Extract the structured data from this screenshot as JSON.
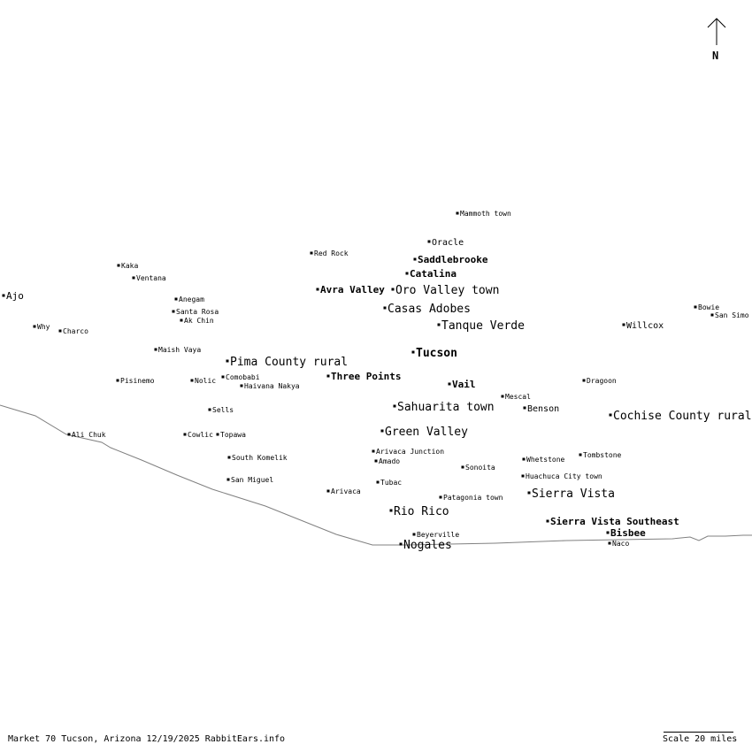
{
  "map": {
    "north_label": "N",
    "footer_text": "Market 70 Tucson, Arizona 12/19/2025 RabbitEars.info",
    "scale_text": "Scale 20 miles",
    "border_color": "#808080",
    "places": [
      {
        "name": "Mammoth town",
        "size": "xs",
        "bold": false
      },
      {
        "name": "Oracle",
        "size": "s",
        "bold": false
      },
      {
        "name": "Saddlebrooke",
        "size": "m",
        "bold": true
      },
      {
        "name": "Red Rock",
        "size": "xs",
        "bold": false
      },
      {
        "name": "Catalina",
        "size": "m",
        "bold": true
      },
      {
        "name": "Avra Valley",
        "size": "m",
        "bold": true
      },
      {
        "name": "Oro Valley town",
        "size": "l",
        "bold": false
      },
      {
        "name": "Casas Adobes",
        "size": "l",
        "bold": false
      },
      {
        "name": "Tanque Verde",
        "size": "l",
        "bold": false
      },
      {
        "name": "Tucson",
        "size": "xl",
        "bold": true
      },
      {
        "name": "Ajo",
        "size": "m",
        "bold": false
      },
      {
        "name": "Kaka",
        "size": "xs",
        "bold": false
      },
      {
        "name": "Ventana",
        "size": "xs",
        "bold": false
      },
      {
        "name": "Anegam",
        "size": "xs",
        "bold": false
      },
      {
        "name": "Santa Rosa",
        "size": "xs",
        "bold": false
      },
      {
        "name": "Ak Chin",
        "size": "xs",
        "bold": false
      },
      {
        "name": "Why",
        "size": "xs",
        "bold": false
      },
      {
        "name": "Charco",
        "size": "xs",
        "bold": false
      },
      {
        "name": "Maish Vaya",
        "size": "xs",
        "bold": false
      },
      {
        "name": "Pima County rural",
        "size": "l",
        "bold": false
      },
      {
        "name": "Pisinemo",
        "size": "xs",
        "bold": false
      },
      {
        "name": "Nolic",
        "size": "xs",
        "bold": false
      },
      {
        "name": "Comobabi",
        "size": "xs",
        "bold": false
      },
      {
        "name": "Haivana Nakya",
        "size": "xs",
        "bold": false
      },
      {
        "name": "Three Points",
        "size": "m",
        "bold": true
      },
      {
        "name": "Vail",
        "size": "m",
        "bold": true
      },
      {
        "name": "Mescal",
        "size": "xs",
        "bold": false
      },
      {
        "name": "Dragoon",
        "size": "xs",
        "bold": false
      },
      {
        "name": "Willcox",
        "size": "s",
        "bold": false
      },
      {
        "name": "Bowie",
        "size": "xs",
        "bold": false
      },
      {
        "name": "San Simo",
        "size": "xs",
        "bold": false
      },
      {
        "name": "Sells",
        "size": "xs",
        "bold": false
      },
      {
        "name": "Sahuarita town",
        "size": "l",
        "bold": false
      },
      {
        "name": "Benson",
        "size": "s",
        "bold": false
      },
      {
        "name": "Cochise County rural",
        "size": "l",
        "bold": false
      },
      {
        "name": "Ali Chuk",
        "size": "xs",
        "bold": false
      },
      {
        "name": "Cowlic",
        "size": "xs",
        "bold": false
      },
      {
        "name": "Topawa",
        "size": "xs",
        "bold": false
      },
      {
        "name": "Green Valley",
        "size": "l",
        "bold": false
      },
      {
        "name": "Arivaca Junction",
        "size": "xs",
        "bold": false
      },
      {
        "name": "Amado",
        "size": "xs",
        "bold": false
      },
      {
        "name": "South Komelik",
        "size": "xs",
        "bold": false
      },
      {
        "name": "Sonoita",
        "size": "xs",
        "bold": false
      },
      {
        "name": "Whetstone",
        "size": "xs",
        "bold": false
      },
      {
        "name": "Tombstone",
        "size": "xs",
        "bold": false
      },
      {
        "name": "Huachuca City town",
        "size": "xs",
        "bold": false
      },
      {
        "name": "San Miguel",
        "size": "xs",
        "bold": false
      },
      {
        "name": "Tubac",
        "size": "xs",
        "bold": false
      },
      {
        "name": "Arivaca",
        "size": "xs",
        "bold": false
      },
      {
        "name": "Patagonia town",
        "size": "xs",
        "bold": false
      },
      {
        "name": "Sierra Vista",
        "size": "l",
        "bold": false
      },
      {
        "name": "Rio Rico",
        "size": "l",
        "bold": false
      },
      {
        "name": "Sierra Vista Southeast",
        "size": "m",
        "bold": true
      },
      {
        "name": "Bisbee",
        "size": "m",
        "bold": true
      },
      {
        "name": "Beyerville",
        "size": "xs",
        "bold": false
      },
      {
        "name": "Nogales",
        "size": "l",
        "bold": false
      },
      {
        "name": "Naco",
        "size": "xs",
        "bold": false
      }
    ]
  }
}
